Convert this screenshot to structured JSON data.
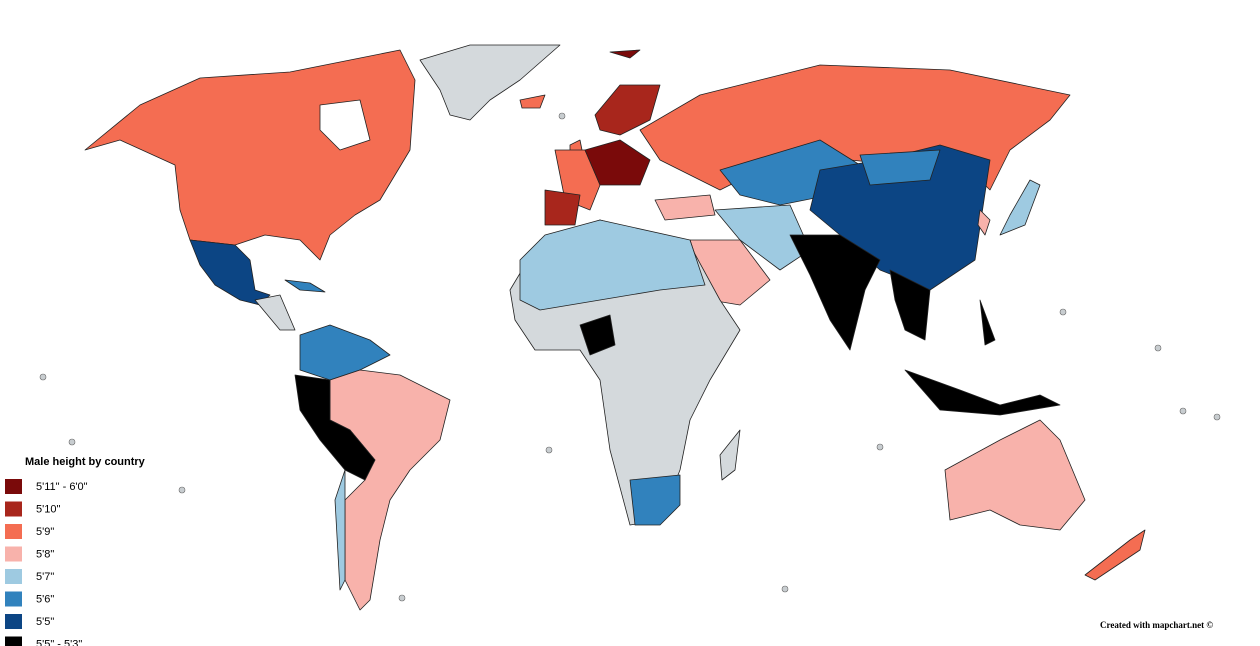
{
  "legend": {
    "title": "Male height by country",
    "items": [
      {
        "label": "5'11\" - 6'0\"",
        "color": "#7a0a0a"
      },
      {
        "label": "5'10\"",
        "color": "#a8261c"
      },
      {
        "label": "5'9\"",
        "color": "#f46d52"
      },
      {
        "label": "5'8\"",
        "color": "#f8b2ab"
      },
      {
        "label": "5'7\"",
        "color": "#9ecae1"
      },
      {
        "label": "5'6\"",
        "color": "#3182bd"
      },
      {
        "label": "5'5\"",
        "color": "#0c4584"
      },
      {
        "label": "5'5\" - 5'3\"",
        "color": "#000000"
      }
    ]
  },
  "credit": "Created with mapchart.net ©"
}
